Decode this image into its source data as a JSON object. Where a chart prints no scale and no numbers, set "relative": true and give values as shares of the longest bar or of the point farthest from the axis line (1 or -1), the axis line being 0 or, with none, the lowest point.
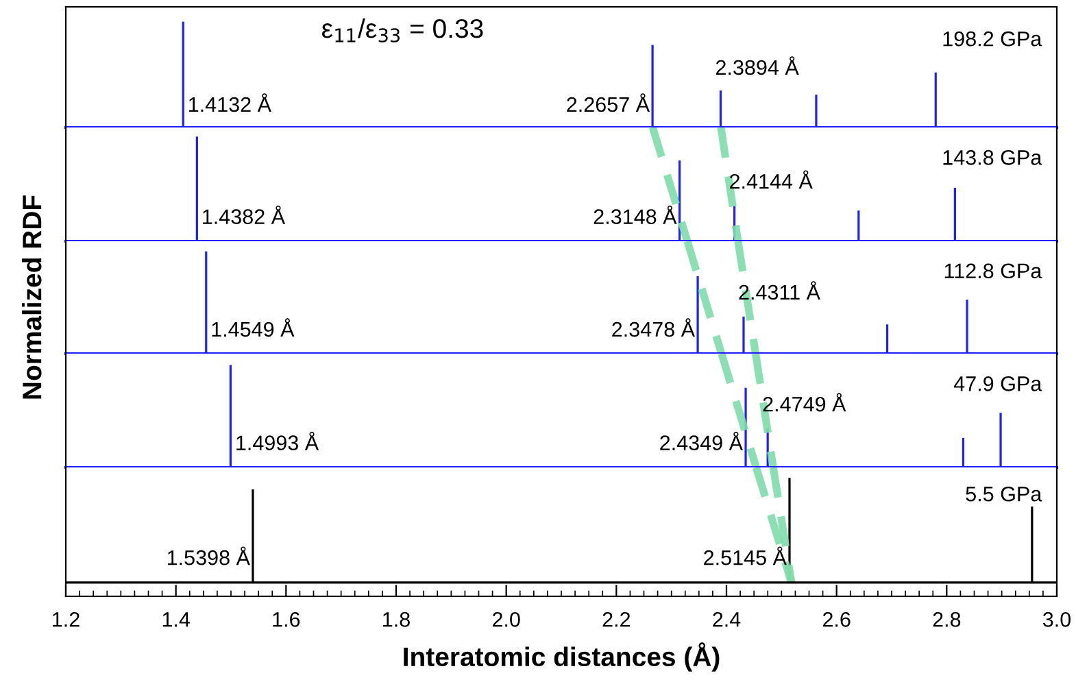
{
  "chart_data": [
    {
      "type": "bar",
      "title": "ε$_{11}$/ε$_{33}$ = 0.33",
      "relative": true,
      "xlim": [
        1.2,
        3.0
      ],
      "tick_labels": false,
      "series": [
        {
          "color": "#1f1fff",
          "x": [
            1.4132,
            2.2657,
            2.3894,
            2.563,
            2.78
          ],
          "values": [
            1,
            0.78,
            0.35,
            0.31,
            0.52
          ]
        }
      ],
      "annotations": [
        {
          "text": "1.4132 Å",
          "x": 1.4132,
          "y": 0
        },
        {
          "text": "2.2657 Å",
          "x": 2.2657,
          "y": 0
        },
        {
          "text": "2.3894 Å",
          "x": 2.3894,
          "y": 0.35
        },
        "198.2 GPa"
      ]
    },
    {
      "type": "bar",
      "relative": true,
      "xlim": [
        1.2,
        3.0
      ],
      "tick_labels": false,
      "series": [
        {
          "color": "#1f1fff",
          "x": [
            1.4382,
            2.3148,
            2.4144,
            2.64,
            2.815
          ],
          "values": [
            0.92,
            0.71,
            0.31,
            0.27,
            0.47
          ]
        },
        {
          "type": "line",
          "line_style": "dashed",
          "color": "#80dcab",
          "x": [
            2.266,
            2.329
          ],
          "values": [
            1,
            0
          ]
        },
        {
          "type": "line",
          "line_style": "dashed",
          "color": "#80dcab",
          "x": [
            2.39,
            2.421
          ],
          "values": [
            1,
            0
          ]
        }
      ],
      "annotations": [
        {
          "text": "1.4382 Å",
          "x": 1.4382,
          "y": 0
        },
        {
          "text": "2.3148 Å",
          "x": 2.3148,
          "y": 0
        },
        {
          "text": "2.4144 Å",
          "x": 2.4144,
          "y": 0.31
        },
        "143.8 GPa"
      ]
    },
    {
      "type": "bar",
      "relative": true,
      "xlim": [
        1.2,
        3.0
      ],
      "tick_labels": false,
      "ylabel": "Normalized RDF",
      "series": [
        {
          "color": "#1f1fff",
          "x": [
            1.4549,
            2.3478,
            2.4311,
            2.692,
            2.837
          ],
          "values": [
            0.91,
            0.69,
            0.33,
            0.26,
            0.48
          ]
        },
        {
          "type": "line",
          "line_style": "dashed",
          "color": "#80dcab",
          "x": [
            2.329,
            2.391
          ],
          "values": [
            1,
            0
          ]
        },
        {
          "type": "line",
          "line_style": "dashed",
          "color": "#80dcab",
          "x": [
            2.421,
            2.453
          ],
          "values": [
            1,
            0
          ]
        }
      ],
      "annotations": [
        {
          "text": "1.4549 Å",
          "x": 1.4549,
          "y": 0
        },
        {
          "text": "2.3478 Å",
          "x": 2.3478,
          "y": 0
        },
        {
          "text": "2.4311 Å",
          "x": 2.4311,
          "y": 0.33
        },
        "112.8 GPa"
      ]
    },
    {
      "type": "bar",
      "relative": true,
      "xlim": [
        1.2,
        3.0
      ],
      "tick_labels": false,
      "series": [
        {
          "color": "#1f1fff",
          "x": [
            1.4993,
            2.4349,
            2.4749,
            2.83,
            2.898
          ],
          "values": [
            0.9,
            0.7,
            0.34,
            0.26,
            0.48
          ]
        },
        {
          "type": "line",
          "line_style": "dashed",
          "color": "#80dcab",
          "x": [
            2.391,
            2.454
          ],
          "values": [
            1,
            0
          ]
        },
        {
          "type": "line",
          "line_style": "dashed",
          "color": "#80dcab",
          "x": [
            2.453,
            2.485
          ],
          "values": [
            1,
            0
          ]
        }
      ],
      "annotations": [
        {
          "text": "1.4993 Å",
          "x": 1.4993,
          "y": 0
        },
        {
          "text": "2.4349 Å",
          "x": 2.4349,
          "y": 0
        },
        {
          "text": "2.4749 Å",
          "x": 2.4749,
          "y": 0.34
        },
        "47.9 GPa"
      ]
    },
    {
      "type": "bar",
      "relative": true,
      "xlim": [
        1.2,
        3.0
      ],
      "tick_labels": "x",
      "xlabel": "Interatomic distances (Å)",
      "xticks": [
        1.2,
        1.4,
        1.6,
        1.8,
        {
          "value": 2.0,
          "label": "2.0"
        },
        2.2,
        2.4,
        2.6,
        2.8,
        {
          "value": 3.0,
          "label": "3.0"
        }
      ],
      "series": [
        {
          "color": "#000000",
          "x": [
            1.5398,
            2.5145,
            2.955
          ],
          "values": [
            0.81,
            0.91,
            0.66
          ]
        },
        {
          "type": "line",
          "line_style": "dashed",
          "color": "#80dcab",
          "x": [
            2.454,
            2.518
          ],
          "values": [
            1,
            0
          ]
        },
        {
          "type": "line",
          "line_style": "dashed",
          "color": "#80dcab",
          "x": [
            2.485,
            2.518
          ],
          "values": [
            1,
            0
          ]
        }
      ],
      "annotations": [
        {
          "text": "1.5398 Å",
          "x": 1.5398,
          "y": 0
        },
        {
          "text": "2.5145 Å",
          "x": 2.5145,
          "y": 0
        },
        "5.5 GPa"
      ]
    }
  ]
}
